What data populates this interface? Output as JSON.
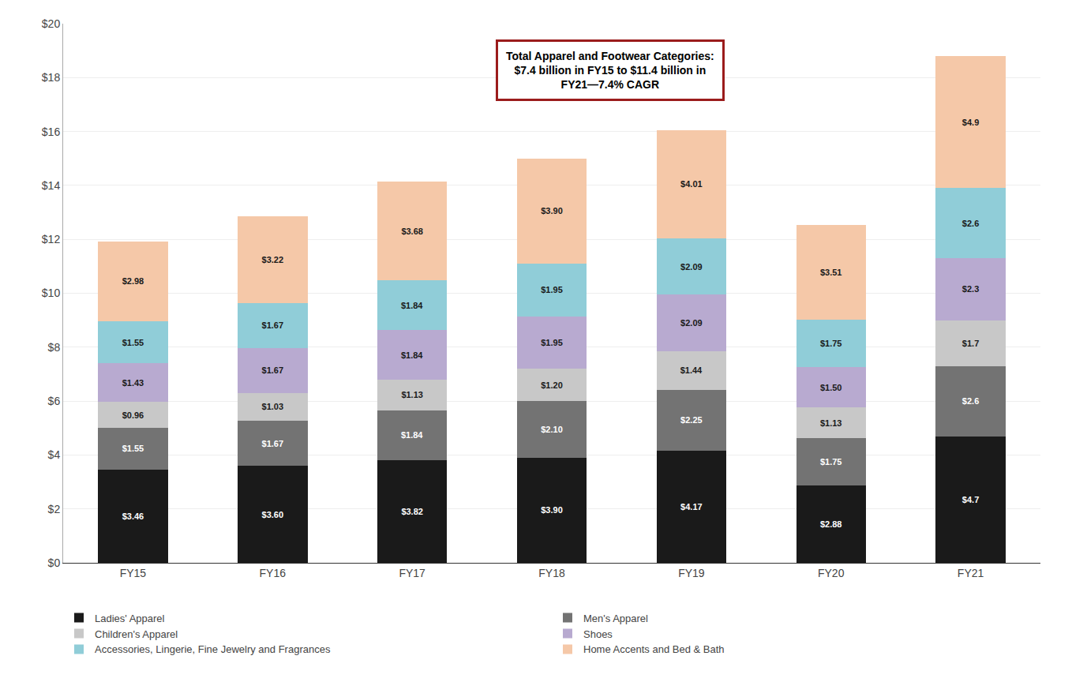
{
  "chart_data": {
    "type": "bar",
    "stacked": true,
    "categories": [
      "FY15",
      "FY16",
      "FY17",
      "FY18",
      "FY19",
      "FY20",
      "FY21"
    ],
    "series": [
      {
        "name": "Ladies' Apparel",
        "color": "#1a1a1a",
        "values": [
          3.46,
          3.6,
          3.82,
          3.9,
          4.17,
          2.88,
          4.7
        ],
        "value_labels": [
          "$3.46",
          "$3.60",
          "$3.82",
          "$3.90",
          "$4.17",
          "$2.88",
          "$4.7"
        ]
      },
      {
        "name": "Men's Apparel",
        "color": "#737373",
        "values": [
          1.55,
          1.67,
          1.84,
          2.1,
          2.25,
          1.75,
          2.6
        ],
        "value_labels": [
          "$1.55",
          "$1.67",
          "$1.84",
          "$2.10",
          "$2.25",
          "$1.75",
          "$2.6"
        ]
      },
      {
        "name": "Children's Apparel",
        "color": "#c8c8c8",
        "values": [
          0.96,
          1.03,
          1.13,
          1.2,
          1.44,
          1.13,
          1.7
        ],
        "value_labels": [
          "$0.96",
          "$1.03",
          "$1.13",
          "$1.20",
          "$1.44",
          "$1.13",
          "$1.7"
        ]
      },
      {
        "name": "Shoes",
        "color": "#b8aad0",
        "values": [
          1.43,
          1.67,
          1.84,
          1.95,
          2.09,
          1.5,
          2.3
        ],
        "value_labels": [
          "$1.43",
          "$1.67",
          "$1.84",
          "$1.95",
          "$2.09",
          "$1.50",
          "$2.3"
        ]
      },
      {
        "name": "Accessories, Lingerie, Fine Jewelry and Fragrances",
        "color": "#90cdd8",
        "values": [
          1.55,
          1.67,
          1.84,
          1.95,
          2.09,
          1.75,
          2.6
        ],
        "value_labels": [
          "$1.55",
          "$1.67",
          "$1.84",
          "$1.95",
          "$2.09",
          "$1.75",
          "$2.6"
        ]
      },
      {
        "name": "Home Accents and Bed & Bath",
        "color": "#f5c8a8",
        "values": [
          2.98,
          3.22,
          3.68,
          3.9,
          4.01,
          3.51,
          4.9
        ],
        "value_labels": [
          "$2.98",
          "$3.22",
          "$3.68",
          "$3.90",
          "$4.01",
          "$3.51",
          "$4.9"
        ]
      }
    ],
    "ylim": [
      0,
      20
    ],
    "yticks": [
      {
        "value": 0,
        "label": "$0"
      },
      {
        "value": 2,
        "label": "$2"
      },
      {
        "value": 4,
        "label": "$4"
      },
      {
        "value": 6,
        "label": "$6"
      },
      {
        "value": 8,
        "label": "$8"
      },
      {
        "value": 10,
        "label": "$10"
      },
      {
        "value": 12,
        "label": "$12"
      },
      {
        "value": 14,
        "label": "$14"
      },
      {
        "value": 16,
        "label": "$16"
      },
      {
        "value": 18,
        "label": "$18"
      },
      {
        "value": 20,
        "label": "$20"
      }
    ],
    "grid": true,
    "data_labels": true,
    "legend": "bottom",
    "annotations": [
      {
        "text": "Total Apparel and Footwear Categories:\n$7.4 billion in FY15 to $11.4 billion in\nFY21—7.4% CAGR",
        "color": "#9b1c1c"
      }
    ]
  }
}
